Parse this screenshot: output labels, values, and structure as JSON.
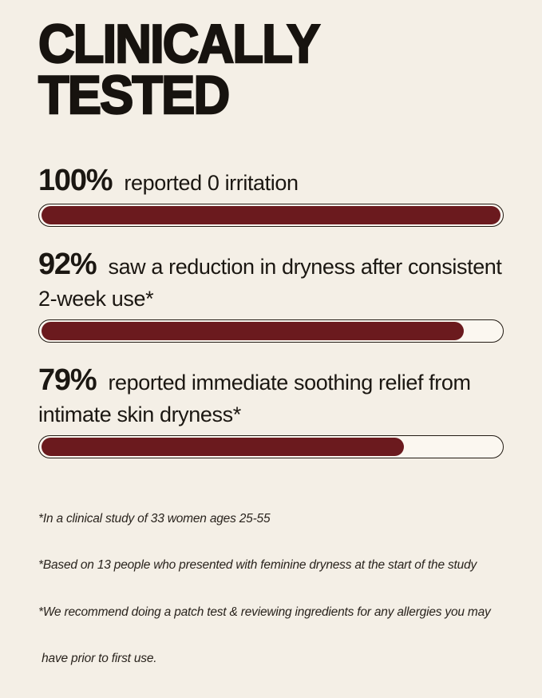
{
  "page": {
    "title_line1": "CLINICALLY",
    "title_line2": "TESTED"
  },
  "stats": [
    {
      "value": "100%",
      "description": "reported 0 irritation",
      "percent": 100
    },
    {
      "value": "92%",
      "description": "saw a reduction in dryness after consistent 2-week use*",
      "percent": 92
    },
    {
      "value": "79%",
      "description": "reported immediate soothing relief from intimate skin dryness*",
      "percent": 79
    }
  ],
  "footnotes": [
    "*In a clinical study of 33 women ages 25-55",
    "*Based on 13 people who presented with feminine dryness at the start of the study",
    "*We recommend doing a patch test & reviewing ingredients for any allergies you may",
    " have prior to first use."
  ],
  "colors": {
    "background": "#f4efe6",
    "bar_fill": "#6b1a1e",
    "bar_track": "#fbf7f0",
    "bar_outline": "#221b14",
    "text": "#17130f"
  },
  "chart_data": {
    "type": "bar",
    "orientation": "horizontal",
    "title": "CLINICALLY TESTED",
    "categories": [
      "reported 0 irritation",
      "saw a reduction in dryness after consistent 2-week use*",
      "reported immediate soothing relief from intimate skin dryness*"
    ],
    "values": [
      100,
      92,
      79
    ],
    "value_unit": "%",
    "xlim": [
      0,
      100
    ],
    "annotations": [
      "*In a clinical study of 33 women ages 25-55",
      "*Based on 13 people who presented with feminine dryness at the start of the study",
      "*We recommend doing a patch test & reviewing ingredients for any allergies you may have prior to first use."
    ],
    "legend": false,
    "grid": false
  }
}
